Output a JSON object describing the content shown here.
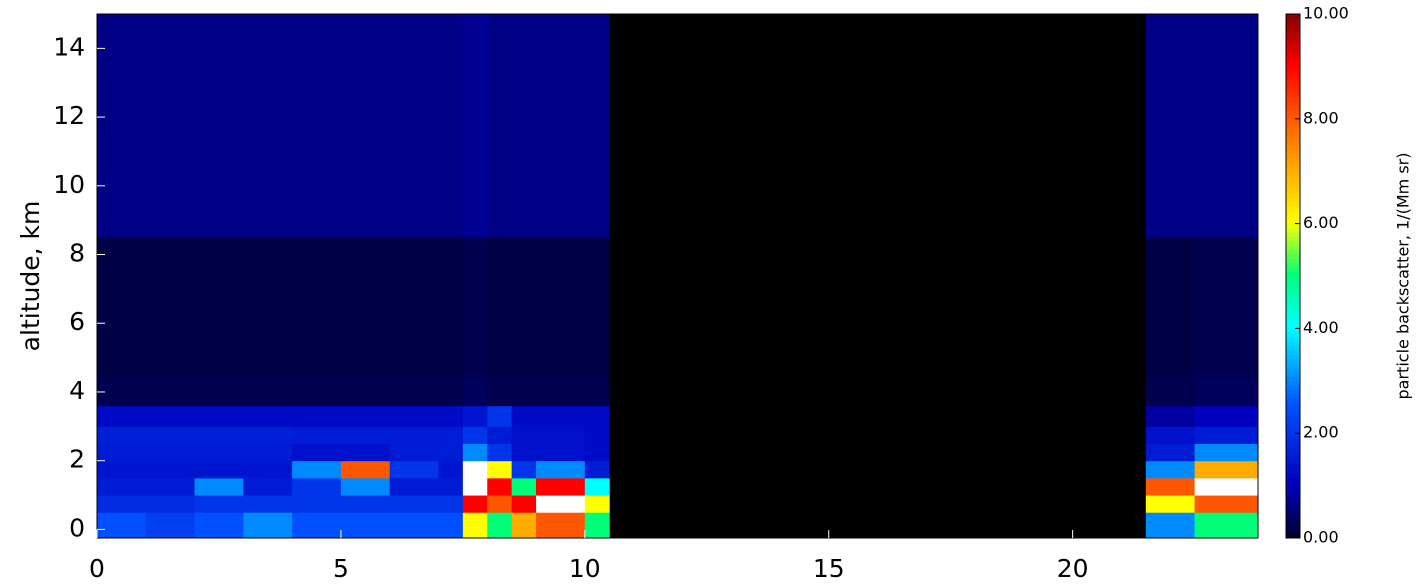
{
  "chart_data": {
    "type": "heatmap",
    "y_label": "altitude, km",
    "colorbar_label": "particle backscatter, 1/(Mm sr)",
    "xlim": [
      0,
      23.8
    ],
    "xticks": [
      0,
      5,
      10,
      15,
      20
    ],
    "ylim": [
      -0.25,
      15
    ],
    "yticks": [
      0,
      2,
      4,
      6,
      8,
      10,
      12,
      14
    ],
    "clim": [
      0,
      10
    ],
    "cticks": [
      {
        "value": 0,
        "label": "0.00"
      },
      {
        "value": 2,
        "label": "2.00"
      },
      {
        "value": 4,
        "label": "4.00"
      },
      {
        "value": 6,
        "label": "6.00"
      },
      {
        "value": 8,
        "label": "8.00"
      },
      {
        "value": 10,
        "label": "10.00"
      }
    ],
    "x_edges": [
      0,
      1,
      2,
      3,
      4,
      5,
      6,
      7,
      7.5,
      8,
      8.5,
      9,
      10,
      10.5,
      21.5,
      22.5,
      23.8
    ],
    "y_edges": [
      -0.25,
      0.5,
      1,
      1.5,
      2,
      2.5,
      3,
      3.6,
      4.5,
      8.5,
      15
    ],
    "z": [
      [
        2.5,
        2.2,
        2.5,
        3,
        2.5,
        2.5,
        2.5,
        2.5,
        6,
        5,
        7,
        8,
        5,
        null,
        3,
        5
      ],
      [
        1.8,
        1.8,
        2,
        2,
        2,
        2,
        2,
        2,
        9,
        8,
        9,
        10,
        6,
        null,
        6,
        8
      ],
      [
        1.5,
        1.5,
        3,
        1.5,
        2,
        3,
        1.5,
        1.5,
        10,
        9,
        5,
        9,
        4,
        null,
        8,
        10
      ],
      [
        1.4,
        1.4,
        1.4,
        1.4,
        3,
        8,
        2,
        1.4,
        10,
        6,
        2,
        3,
        1.5,
        null,
        3,
        7
      ],
      [
        1.5,
        1.5,
        1.5,
        1.5,
        1.3,
        1.3,
        1.5,
        1.5,
        3,
        2,
        1.3,
        1.3,
        1.2,
        null,
        1.5,
        3
      ],
      [
        1.6,
        1.6,
        1.6,
        1.6,
        1.5,
        1.5,
        1.5,
        1.5,
        2,
        1.5,
        1.3,
        1.3,
        1.2,
        null,
        1.3,
        1.5
      ],
      [
        1.2,
        1.2,
        1.2,
        1.2,
        1.2,
        1.2,
        1.2,
        1.2,
        1.4,
        2,
        1.2,
        1.2,
        1.2,
        null,
        0.8,
        1
      ],
      [
        0.2,
        0.2,
        0.2,
        0.2,
        0.2,
        0.2,
        0.2,
        0.2,
        0.3,
        0.2,
        0.2,
        0.2,
        0.2,
        null,
        0.2,
        0.3
      ],
      [
        0.15,
        0.15,
        0.15,
        0.15,
        0.15,
        0.15,
        0.15,
        0.15,
        0.2,
        0.15,
        0.15,
        0.15,
        0.15,
        null,
        0.15,
        0.2
      ],
      [
        0.6,
        0.6,
        0.6,
        0.6,
        0.6,
        0.6,
        0.6,
        0.6,
        0.7,
        0.6,
        0.6,
        0.6,
        0.6,
        null,
        0.6,
        0.6
      ]
    ]
  }
}
